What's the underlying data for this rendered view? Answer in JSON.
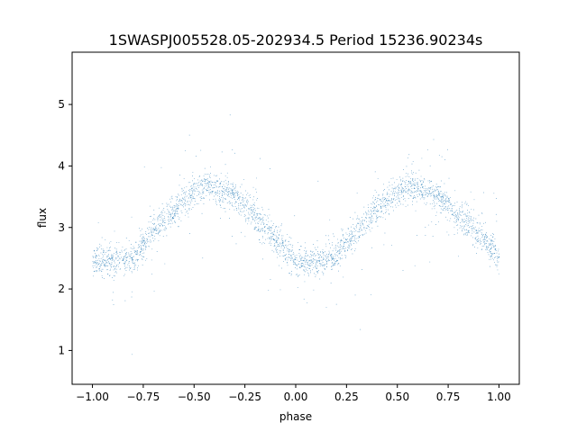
{
  "chart_data": {
    "type": "scatter",
    "title": "1SWASPJ005528.05-202934.5 Period 15236.90234s",
    "xlabel": "phase",
    "ylabel": "flux",
    "xlim": [
      -1.1,
      1.1
    ],
    "ylim": [
      0.45,
      5.85
    ],
    "x_ticks": [
      -1.0,
      -0.75,
      -0.5,
      -0.25,
      0.0,
      0.25,
      0.5,
      0.75,
      1.0
    ],
    "x_tick_labels": [
      "−1.00",
      "−0.75",
      "−0.50",
      "−0.25",
      "0.00",
      "0.25",
      "0.50",
      "0.75",
      "1.00"
    ],
    "y_ticks": [
      1,
      2,
      3,
      4,
      5
    ],
    "y_tick_labels": [
      "1",
      "2",
      "3",
      "4",
      "5"
    ],
    "grid": false,
    "legend": "none",
    "series": [
      {
        "marker_color": "#1f77b4",
        "phase_range": [
          -1.0,
          1.0
        ],
        "trend": {
          "x": [
            -1.0,
            -0.9,
            -0.8,
            -0.75,
            -0.7,
            -0.6,
            -0.5,
            -0.45,
            -0.4,
            -0.3,
            -0.2,
            -0.1,
            0.0,
            0.05,
            0.1,
            0.2,
            0.25,
            0.3,
            0.4,
            0.5,
            0.55,
            0.6,
            0.7,
            0.8,
            0.9,
            1.0
          ],
          "y": [
            2.45,
            2.45,
            2.5,
            2.75,
            2.95,
            3.3,
            3.6,
            3.68,
            3.65,
            3.5,
            3.2,
            2.8,
            2.48,
            2.42,
            2.45,
            2.55,
            2.75,
            2.95,
            3.3,
            3.6,
            3.68,
            3.65,
            3.5,
            3.2,
            2.9,
            2.5
          ]
        },
        "core_scatter": 0.12,
        "outlier_range": [
          0.7,
          5.6
        ]
      }
    ]
  }
}
